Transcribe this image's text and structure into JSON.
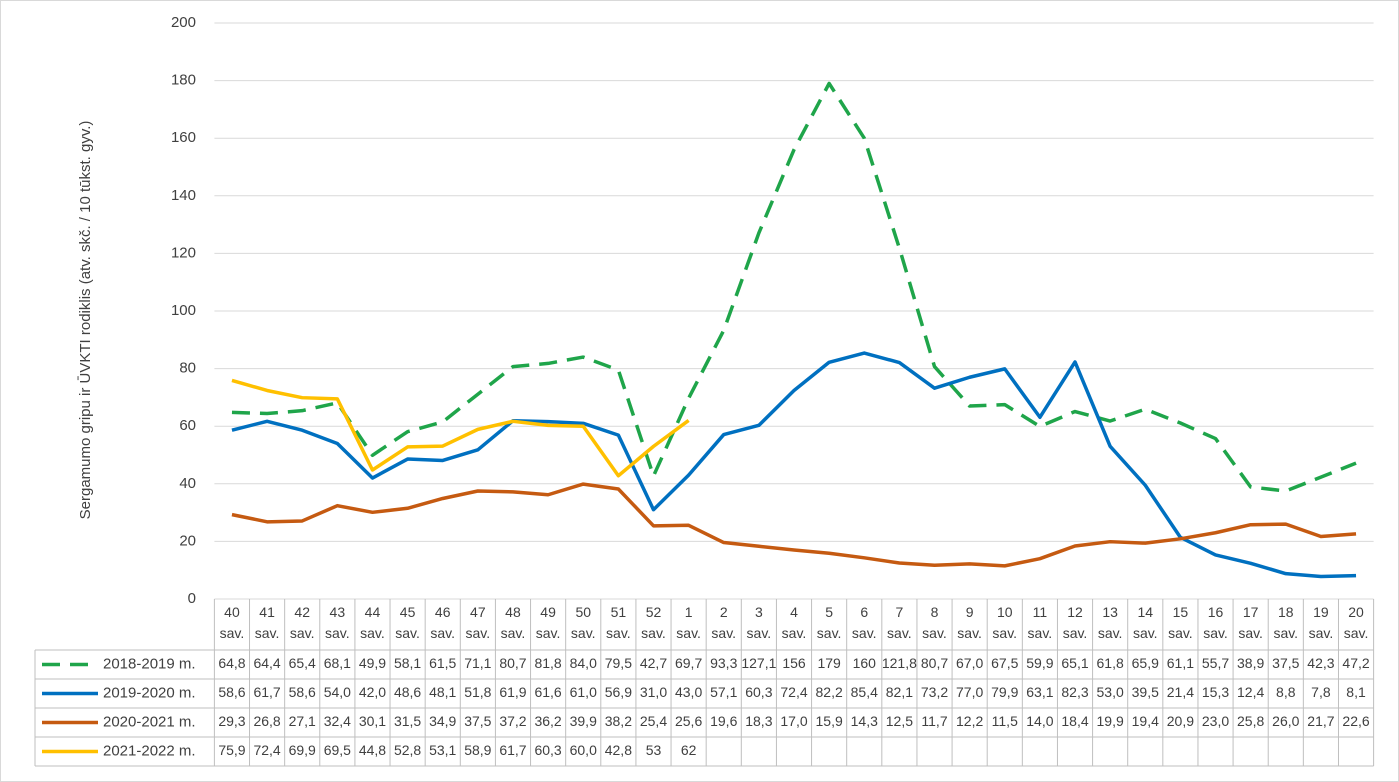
{
  "chart_data": {
    "type": "line",
    "ylabel": "Sergamumo gripu ir ŪVKTI rodiklis (atv. skč. / 10 tūkst. gyv.)",
    "categories": [
      "40 sav.",
      "41 sav.",
      "42 sav.",
      "43 sav.",
      "44 sav.",
      "45 sav.",
      "46 sav.",
      "47 sav.",
      "48 sav.",
      "49 sav.",
      "50 sav.",
      "51 sav.",
      "52 sav.",
      "1 sav.",
      "2 sav.",
      "3 sav.",
      "4 sav.",
      "5 sav.",
      "6 sav.",
      "7 sav.",
      "8 sav.",
      "9 sav.",
      "10 sav.",
      "11 sav.",
      "12 sav.",
      "13 sav.",
      "14 sav.",
      "15 sav.",
      "16 sav.",
      "17 sav.",
      "18 sav.",
      "19 sav.",
      "20 sav."
    ],
    "ylim": [
      0,
      200
    ],
    "yticks": [
      0,
      20,
      40,
      60,
      80,
      100,
      120,
      140,
      160,
      180,
      200
    ],
    "grid": true,
    "series": [
      {
        "name": "2018-2019 m.",
        "color": "#1fa54a",
        "line_style": "dashed",
        "values": [
          64.8,
          64.4,
          65.4,
          68.1,
          49.9,
          58.1,
          61.5,
          71.1,
          80.7,
          81.8,
          84.0,
          79.5,
          42.7,
          69.7,
          93.3,
          127.1,
          156,
          179,
          160,
          121.8,
          80.7,
          67.0,
          67.5,
          59.9,
          65.1,
          61.8,
          65.9,
          61.1,
          55.7,
          38.9,
          37.5,
          42.3,
          47.2
        ],
        "value_labels": [
          "64,8",
          "64,4",
          "65,4",
          "68,1",
          "49,9",
          "58,1",
          "61,5",
          "71,1",
          "80,7",
          "81,8",
          "84,0",
          "79,5",
          "42,7",
          "69,7",
          "93,3",
          "127,1",
          "156",
          "179",
          "160",
          "121,8",
          "80,7",
          "67,0",
          "67,5",
          "59,9",
          "65,1",
          "61,8",
          "65,9",
          "61,1",
          "55,7",
          "38,9",
          "37,5",
          "42,3",
          "47,2"
        ]
      },
      {
        "name": "2019-2020 m.",
        "color": "#0070c0",
        "line_style": "solid",
        "values": [
          58.6,
          61.7,
          58.6,
          54.0,
          42.0,
          48.6,
          48.1,
          51.8,
          61.9,
          61.6,
          61.0,
          56.9,
          31.0,
          43.0,
          57.1,
          60.3,
          72.4,
          82.2,
          85.4,
          82.1,
          73.2,
          77.0,
          79.9,
          63.1,
          82.3,
          53.0,
          39.5,
          21.4,
          15.3,
          12.4,
          8.8,
          7.8,
          8.1
        ],
        "value_labels": [
          "58,6",
          "61,7",
          "58,6",
          "54,0",
          "42,0",
          "48,6",
          "48,1",
          "51,8",
          "61,9",
          "61,6",
          "61,0",
          "56,9",
          "31,0",
          "43,0",
          "57,1",
          "60,3",
          "72,4",
          "82,2",
          "85,4",
          "82,1",
          "73,2",
          "77,0",
          "79,9",
          "63,1",
          "82,3",
          "53,0",
          "39,5",
          "21,4",
          "15,3",
          "12,4",
          "8,8",
          "7,8",
          "8,1"
        ]
      },
      {
        "name": "2020-2021 m.",
        "color": "#c55a11",
        "line_style": "solid",
        "values": [
          29.3,
          26.8,
          27.1,
          32.4,
          30.1,
          31.5,
          34.9,
          37.5,
          37.2,
          36.2,
          39.9,
          38.2,
          25.4,
          25.6,
          19.6,
          18.3,
          17.0,
          15.9,
          14.3,
          12.5,
          11.7,
          12.2,
          11.5,
          14.0,
          18.4,
          19.9,
          19.4,
          20.9,
          23.0,
          25.8,
          26.0,
          21.7,
          22.6
        ],
        "value_labels": [
          "29,3",
          "26,8",
          "27,1",
          "32,4",
          "30,1",
          "31,5",
          "34,9",
          "37,5",
          "37,2",
          "36,2",
          "39,9",
          "38,2",
          "25,4",
          "25,6",
          "19,6",
          "18,3",
          "17,0",
          "15,9",
          "14,3",
          "12,5",
          "11,7",
          "12,2",
          "11,5",
          "14,0",
          "18,4",
          "19,9",
          "19,4",
          "20,9",
          "23,0",
          "25,8",
          "26,0",
          "21,7",
          "22,6"
        ]
      },
      {
        "name": "2021-2022 m.",
        "color": "#ffc000",
        "line_style": "solid",
        "values": [
          75.9,
          72.4,
          69.9,
          69.5,
          44.8,
          52.8,
          53.1,
          58.9,
          61.7,
          60.3,
          60.0,
          42.8,
          53,
          62,
          null,
          null,
          null,
          null,
          null,
          null,
          null,
          null,
          null,
          null,
          null,
          null,
          null,
          null,
          null,
          null,
          null,
          null,
          null
        ],
        "value_labels": [
          "75,9",
          "72,4",
          "69,9",
          "69,5",
          "44,8",
          "52,8",
          "53,1",
          "58,9",
          "61,7",
          "60,3",
          "60,0",
          "42,8",
          "53",
          "62",
          null,
          null,
          null,
          null,
          null,
          null,
          null,
          null,
          null,
          null,
          null,
          null,
          null,
          null,
          null,
          null,
          null,
          null,
          null
        ]
      }
    ]
  }
}
